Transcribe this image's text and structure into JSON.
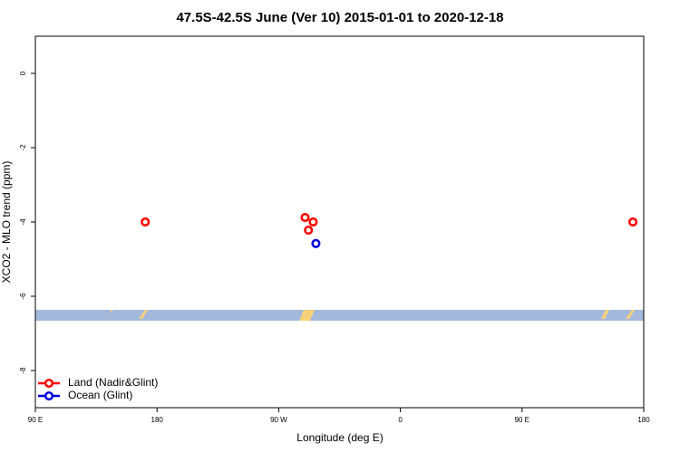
{
  "chart_data": {
    "type": "scatter",
    "title": "47.5S-42.5S June (Ver 10)   2015-01-01 to 2020-12-18",
    "x_label": "Longitude (deg E)",
    "y_label": "XCO2 - MLO trend (ppm)",
    "xlim": [
      90,
      540
    ],
    "xticks": [
      {
        "value": 90,
        "label": "90 E"
      },
      {
        "value": 180,
        "label": "180"
      },
      {
        "value": 270,
        "label": "90 W"
      },
      {
        "value": 360,
        "label": "0"
      },
      {
        "value": 450,
        "label": "90 E"
      },
      {
        "value": 540,
        "label": "180"
      }
    ],
    "ylim": [
      -9,
      1
    ],
    "yticks": [
      0,
      -2,
      -4,
      -6,
      -8
    ],
    "legend": "bottom-left",
    "series": [
      {
        "name": "Land (Nadir&Glint)",
        "color": "#ff0000",
        "x": [
          171.3,
          289.5,
          295.5,
          292,
          532
        ],
        "values": [
          -4.0,
          -3.88,
          -4.0,
          -4.22,
          -4.0
        ]
      },
      {
        "name": "Ocean (Glint)",
        "color": "#0000dd",
        "x": [
          297.5
        ],
        "values": [
          -4.58
        ]
      }
    ]
  }
}
